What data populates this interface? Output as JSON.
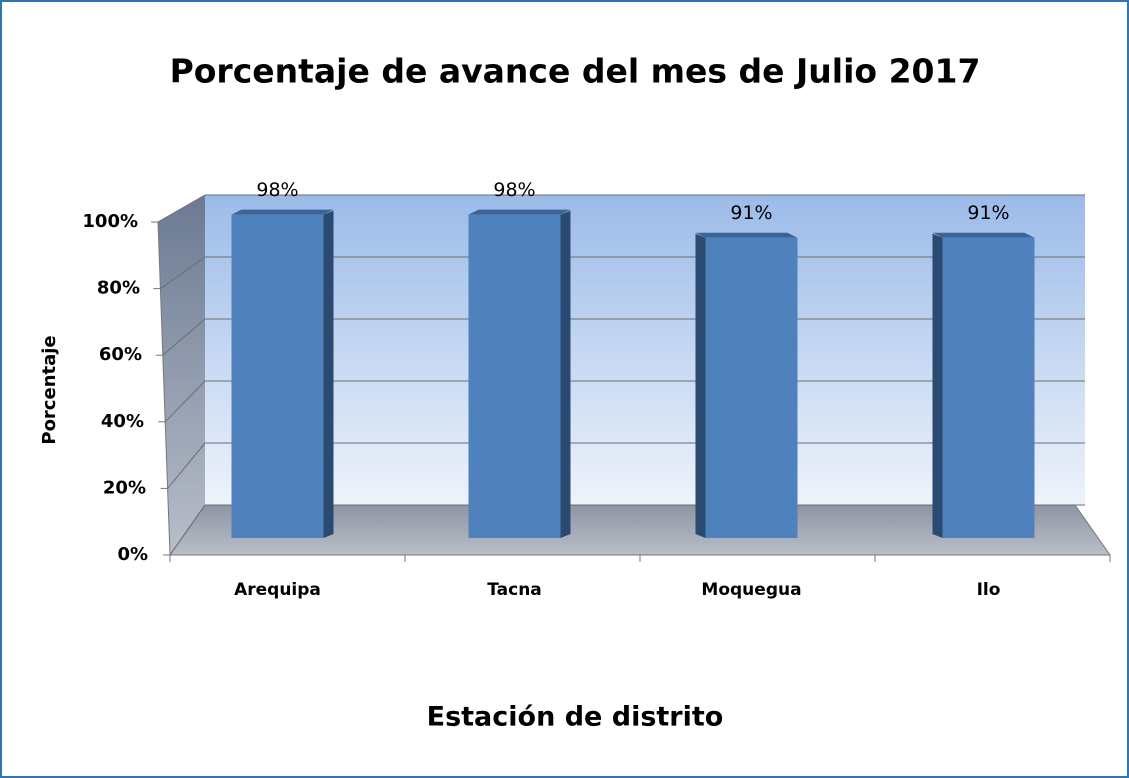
{
  "chart_data": {
    "type": "bar3d",
    "title": "Porcentaje de avance del mes de  Julio 2017",
    "x_label": "Estación de distrito",
    "y_label": "Porcentaje",
    "categories": [
      "Arequipa",
      "Tacna",
      "Moquegua",
      "Ilo"
    ],
    "values": [
      98,
      98,
      91,
      91
    ],
    "value_labels": [
      "98%",
      "98%",
      "91%",
      "91%"
    ],
    "color": "#4f81bd",
    "ylim": [
      0,
      100
    ],
    "yticks": [
      {
        "value": 0,
        "label": "0%"
      },
      {
        "value": 20,
        "label": "20%"
      },
      {
        "value": 40,
        "label": "40%"
      },
      {
        "value": 60,
        "label": "60%"
      },
      {
        "value": 80,
        "label": "80%"
      },
      {
        "value": 100,
        "label": "100%"
      }
    ],
    "grid": true
  }
}
